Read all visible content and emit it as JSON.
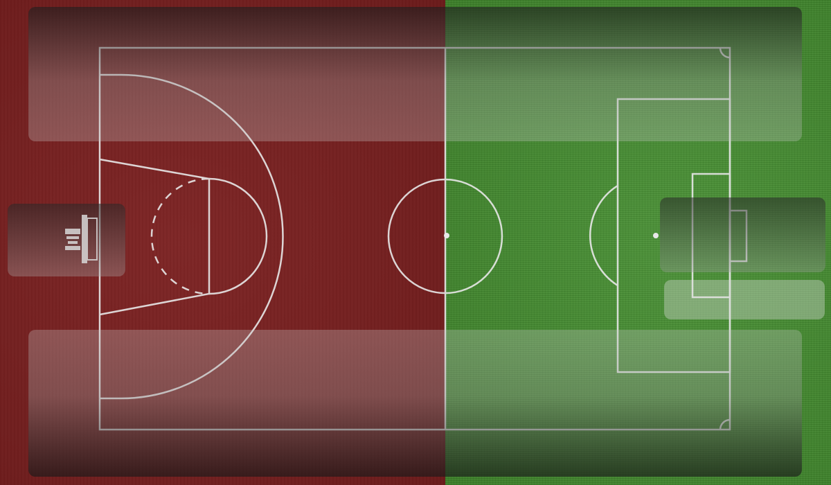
{
  "scene": {
    "court_color": "#7a1f1f",
    "pitch_color": "#3f8a2a",
    "line_color": "#e8e8e8"
  },
  "icons": {
    "left_panel_icon": "basketball-hoop-icon"
  }
}
